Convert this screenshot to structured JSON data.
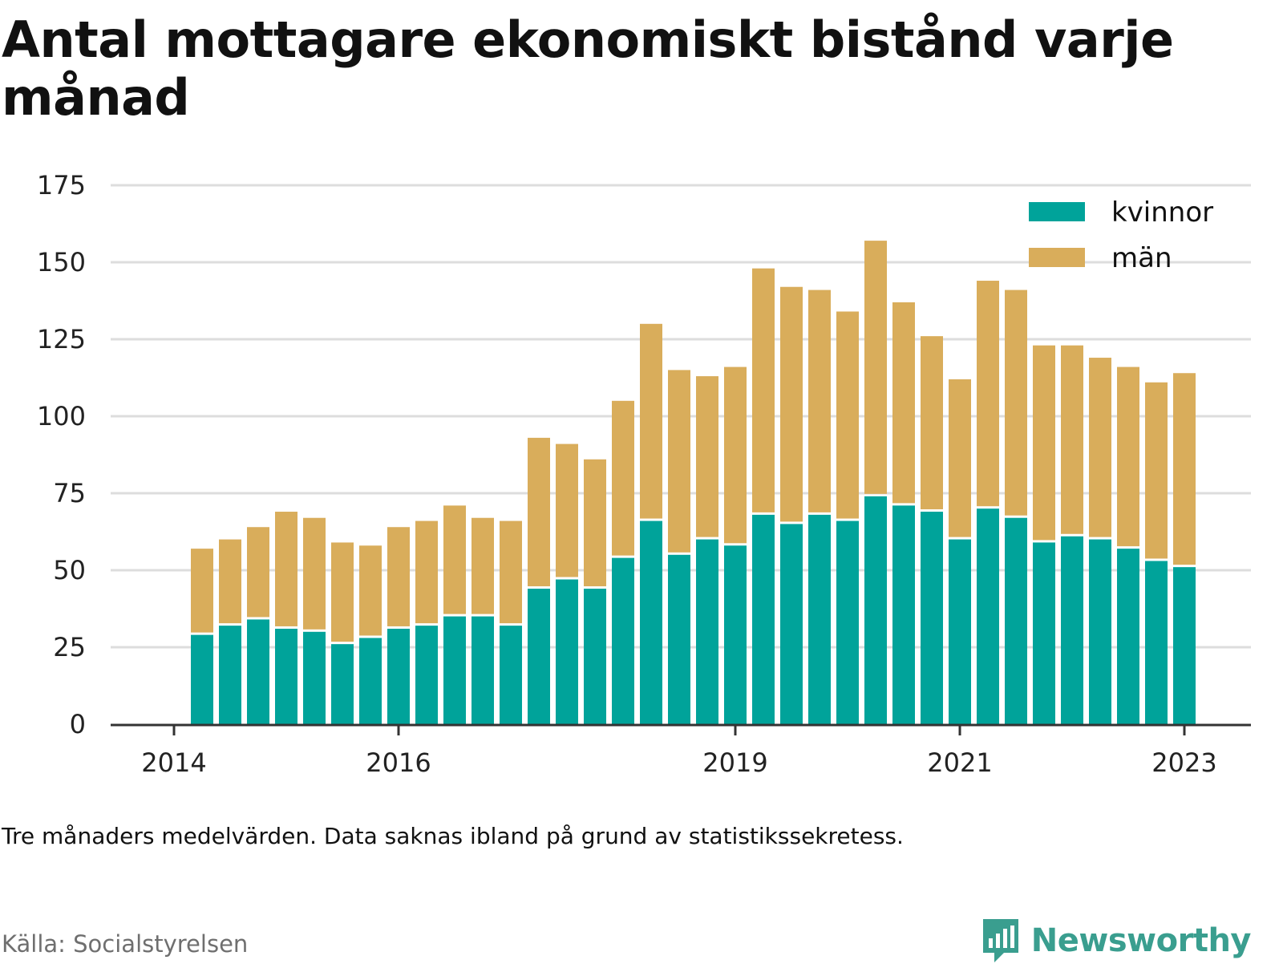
{
  "title": "Antal mottagare ekonomiskt bistånd varje månad",
  "note": "Tre månaders medelvärden. Data saknas ibland på grund av statistikssekretess.",
  "source": "Källa: Socialstyrelsen",
  "brand": "Newsworthy",
  "colors": {
    "kvinnor": "#00a39a",
    "man": "#d9ad5b",
    "grid": "#dddddd",
    "axis": "#333333"
  },
  "chart_data": {
    "type": "bar",
    "stacked": true,
    "title": "Antal mottagare ekonomiskt bistånd varje månad",
    "xlabel": "",
    "ylabel": "",
    "ylim": [
      0,
      175
    ],
    "yticks": [
      0,
      25,
      50,
      75,
      100,
      125,
      150,
      175
    ],
    "grid": true,
    "legend_position": "top-right",
    "x_tick_labels": [
      "2014",
      "2016",
      "2019",
      "2021",
      "2023"
    ],
    "x_tick_bar_index": [
      -1,
      7,
      19,
      27,
      35
    ],
    "bar_count": 37,
    "series": [
      {
        "name": "kvinnor",
        "color": "#00a39a",
        "values": [
          29,
          32,
          34,
          31,
          30,
          26,
          28,
          31,
          32,
          35,
          35,
          32,
          44,
          47,
          44,
          54,
          66,
          55,
          60,
          58,
          68,
          65,
          68,
          66,
          74,
          71,
          69,
          60,
          70,
          67,
          59,
          61,
          60,
          57,
          53,
          51,
          0
        ]
      },
      {
        "name": "män",
        "color": "#d9ad5b",
        "values": [
          28,
          28,
          30,
          38,
          37,
          33,
          30,
          33,
          34,
          36,
          32,
          34,
          49,
          44,
          42,
          51,
          64,
          60,
          53,
          58,
          80,
          77,
          73,
          68,
          83,
          66,
          57,
          52,
          74,
          74,
          64,
          62,
          59,
          59,
          58,
          63,
          0
        ]
      }
    ]
  }
}
